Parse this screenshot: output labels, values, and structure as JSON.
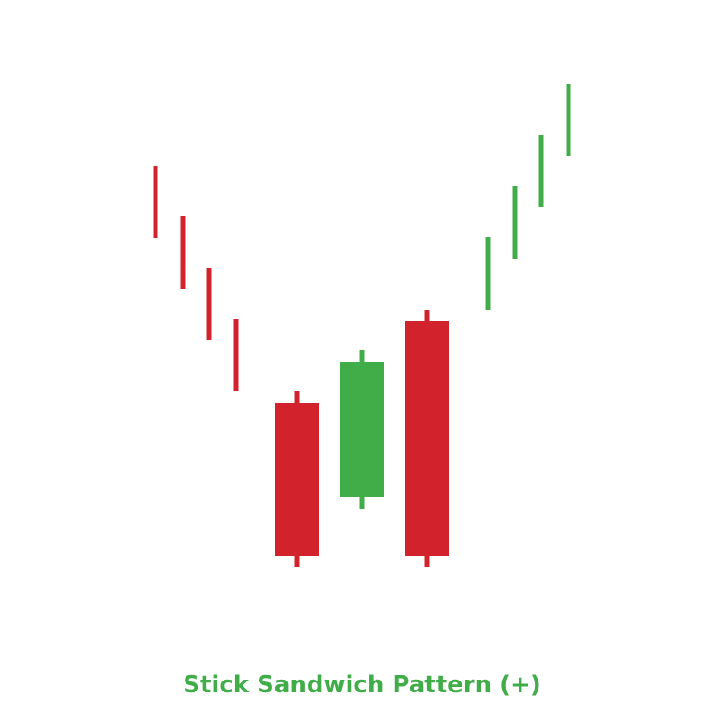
{
  "chart_data": {
    "type": "candlestick",
    "title": "Stick Sandwich Pattern (+)",
    "grid": false,
    "axes_visible": false,
    "colors": {
      "bearish": "#d2232d",
      "bullish": "#41ad49",
      "title": "#41ad49"
    },
    "candles": [
      {
        "trend": "down",
        "kind": "stick",
        "high": 45.7,
        "low": 37.7
      },
      {
        "trend": "down",
        "kind": "stick",
        "high": 40.1,
        "low": 32.1
      },
      {
        "trend": "down",
        "kind": "stick",
        "high": 34.4,
        "low": 26.4
      },
      {
        "trend": "down",
        "kind": "stick",
        "high": 28.8,
        "low": 20.8
      },
      {
        "kind": "candle",
        "direction": "bearish",
        "open": 19.5,
        "high": 20.8,
        "low": 1.3,
        "close": 2.6
      },
      {
        "kind": "candle",
        "direction": "bullish",
        "open": 9.1,
        "high": 25.3,
        "low": 7.8,
        "close": 24.0
      },
      {
        "kind": "candle",
        "direction": "bearish",
        "open": 28.5,
        "high": 29.8,
        "low": 1.3,
        "close": 2.6
      },
      {
        "trend": "up",
        "kind": "stick",
        "high": 37.8,
        "low": 29.8
      },
      {
        "trend": "up",
        "kind": "stick",
        "high": 43.4,
        "low": 35.4
      },
      {
        "trend": "up",
        "kind": "stick",
        "high": 49.1,
        "low": 41.1
      },
      {
        "trend": "up",
        "kind": "stick",
        "high": 54.7,
        "low": 46.8
      }
    ]
  }
}
